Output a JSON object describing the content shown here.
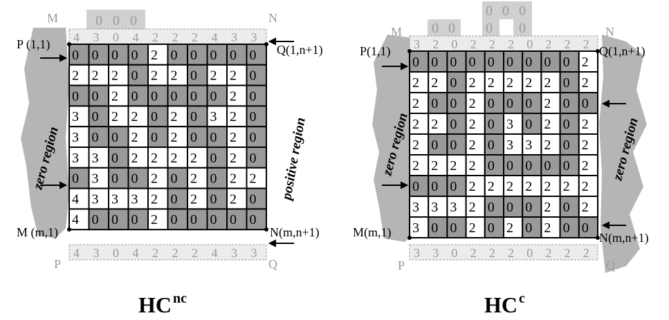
{
  "left": {
    "corner_top_left": "M",
    "corner_top_right": "N",
    "corner_bottom_left": "P",
    "corner_bottom_right": "Q",
    "label_p": "P (1,1)",
    "label_q": "Q(1,n+1)",
    "label_m": "M (m,1)",
    "label_n": "N(m,n+1)",
    "zero_region": "zero region",
    "positive_region": "positive region",
    "title_main": "HC",
    "title_sup": "nc",
    "top_ghost": [
      "0",
      "0",
      "0"
    ],
    "ghost_row_top": [
      "4",
      "3",
      "0",
      "4",
      "2",
      "2",
      "2",
      "4",
      "3",
      "3"
    ],
    "ghost_row_bottom": [
      "4",
      "3",
      "0",
      "4",
      "2",
      "2",
      "2",
      "4",
      "3",
      "3"
    ],
    "grid": [
      [
        "0",
        "0",
        "0",
        "0",
        "2",
        "0",
        "0",
        "0",
        "0",
        "0"
      ],
      [
        "2",
        "2",
        "2",
        "0",
        "2",
        "2",
        "0",
        "2",
        "2",
        "0"
      ],
      [
        "0",
        "0",
        "2",
        "0",
        "0",
        "0",
        "0",
        "0",
        "2",
        "0"
      ],
      [
        "3",
        "0",
        "2",
        "2",
        "0",
        "2",
        "0",
        "3",
        "2",
        "0"
      ],
      [
        "3",
        "0",
        "0",
        "2",
        "0",
        "2",
        "0",
        "0",
        "2",
        "0"
      ],
      [
        "3",
        "3",
        "0",
        "2",
        "2",
        "2",
        "2",
        "0",
        "2",
        "0"
      ],
      [
        "0",
        "3",
        "0",
        "0",
        "2",
        "0",
        "2",
        "0",
        "2",
        "2"
      ],
      [
        "4",
        "3",
        "3",
        "3",
        "2",
        "0",
        "2",
        "0",
        "2",
        "0"
      ],
      [
        "4",
        "0",
        "0",
        "0",
        "2",
        "0",
        "0",
        "0",
        "0",
        "0"
      ]
    ],
    "shade": [
      [
        1,
        1,
        1,
        1,
        0,
        1,
        1,
        1,
        1,
        1
      ],
      [
        0,
        0,
        0,
        1,
        0,
        0,
        1,
        0,
        0,
        1
      ],
      [
        1,
        1,
        0,
        1,
        1,
        1,
        1,
        1,
        0,
        1
      ],
      [
        0,
        1,
        0,
        0,
        1,
        0,
        1,
        0,
        0,
        1
      ],
      [
        0,
        1,
        1,
        0,
        1,
        0,
        1,
        1,
        0,
        1
      ],
      [
        0,
        0,
        1,
        0,
        0,
        0,
        0,
        1,
        0,
        1
      ],
      [
        1,
        0,
        1,
        1,
        0,
        1,
        0,
        1,
        0,
        0
      ],
      [
        0,
        0,
        0,
        0,
        0,
        1,
        0,
        1,
        0,
        1
      ],
      [
        0,
        1,
        1,
        1,
        0,
        1,
        1,
        1,
        1,
        1
      ]
    ]
  },
  "right": {
    "corner_top_left": "M",
    "corner_top_right": "N",
    "corner_bottom_left": "P",
    "corner_bottom_right": "Q",
    "label_p": "P(1,1)",
    "label_q": "Q(1,n+1)",
    "label_m": "M(m,1)",
    "label_n": "N(m,n+1)",
    "zero_region_left": "zero region",
    "zero_region_right": "zero region",
    "title_main": "HC",
    "title_sup": "c",
    "top_ghost_small": [
      "0",
      "0"
    ],
    "top_ghost_big": [
      "0",
      "0",
      "0",
      "0",
      "0"
    ],
    "ghost_row_top": [
      "3",
      "2",
      "0",
      "2",
      "2",
      "2",
      "0",
      "2",
      "2",
      "2"
    ],
    "ghost_row_bottom": [
      "3",
      "3",
      "0",
      "2",
      "2",
      "2",
      "0",
      "2",
      "2",
      "2"
    ],
    "grid": [
      [
        "0",
        "0",
        "0",
        "0",
        "0",
        "0",
        "0",
        "0",
        "0",
        "2"
      ],
      [
        "2",
        "2",
        "0",
        "2",
        "2",
        "2",
        "2",
        "2",
        "0",
        "2"
      ],
      [
        "2",
        "0",
        "0",
        "2",
        "0",
        "0",
        "0",
        "2",
        "0",
        "0"
      ],
      [
        "2",
        "2",
        "0",
        "2",
        "0",
        "3",
        "0",
        "2",
        "0",
        "2"
      ],
      [
        "2",
        "0",
        "0",
        "2",
        "0",
        "3",
        "3",
        "2",
        "0",
        "2"
      ],
      [
        "2",
        "2",
        "2",
        "2",
        "0",
        "0",
        "0",
        "0",
        "0",
        "2"
      ],
      [
        "0",
        "0",
        "0",
        "2",
        "2",
        "2",
        "2",
        "2",
        "2",
        "2"
      ],
      [
        "3",
        "3",
        "3",
        "2",
        "0",
        "0",
        "0",
        "2",
        "0",
        "2"
      ],
      [
        "3",
        "0",
        "0",
        "2",
        "0",
        "2",
        "0",
        "2",
        "0",
        "0"
      ]
    ],
    "shade": [
      [
        1,
        1,
        1,
        1,
        1,
        1,
        1,
        1,
        1,
        0
      ],
      [
        0,
        0,
        1,
        0,
        0,
        0,
        0,
        0,
        1,
        0
      ],
      [
        0,
        1,
        1,
        0,
        1,
        1,
        1,
        0,
        1,
        1
      ],
      [
        0,
        0,
        1,
        0,
        1,
        0,
        1,
        0,
        1,
        0
      ],
      [
        0,
        1,
        1,
        0,
        1,
        0,
        0,
        0,
        1,
        0
      ],
      [
        0,
        0,
        0,
        0,
        1,
        1,
        1,
        1,
        1,
        0
      ],
      [
        1,
        1,
        1,
        0,
        0,
        0,
        0,
        0,
        0,
        0
      ],
      [
        0,
        0,
        0,
        0,
        1,
        1,
        1,
        0,
        1,
        0
      ],
      [
        0,
        1,
        1,
        0,
        1,
        0,
        1,
        0,
        1,
        1
      ]
    ]
  }
}
